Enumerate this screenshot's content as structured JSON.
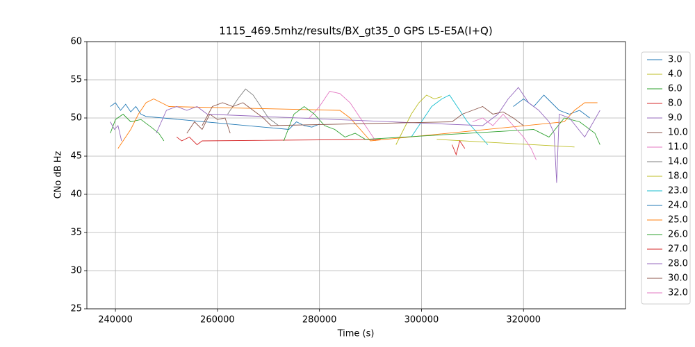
{
  "chart_data": {
    "type": "line",
    "title": "1115_469.5mhz/results/BX_gt35_0 GPS L5-E5A(I+Q)",
    "x_label": "Time (s)",
    "y_label": "CNo dB Hz",
    "xlim": [
      234400,
      340000
    ],
    "ylim": [
      25,
      60
    ],
    "xticks": [
      240000,
      260000,
      280000,
      300000,
      320000
    ],
    "yticks": [
      25,
      30,
      35,
      40,
      45,
      50,
      55,
      60
    ],
    "grid": true,
    "legend": "outside right",
    "series": [
      {
        "name": "3.0",
        "color": "#1f77b4",
        "x": [
          239000,
          240000,
          241000,
          242000,
          243000,
          244000,
          245000,
          246000,
          274000,
          275500,
          277000,
          278500,
          280000
        ],
        "values": [
          51.5,
          52,
          51,
          51.8,
          50.8,
          51.5,
          50.5,
          50.2,
          48.5,
          49.5,
          49,
          48.8,
          49.2
        ]
      },
      {
        "name": "4.0",
        "color": "#bcbd22",
        "x": [
          303000,
          330000
        ],
        "values": [
          47.2,
          46.2
        ]
      },
      {
        "name": "6.0",
        "color": "#2ca02c",
        "x": [
          239000,
          240000,
          241500,
          243000,
          245000,
          247000,
          248500,
          249500
        ],
        "values": [
          48,
          49.8,
          50.5,
          49.5,
          49.8,
          48.8,
          48,
          47
        ]
      },
      {
        "name": "8.0",
        "color": "#d62728",
        "x": [
          252000,
          253000,
          254500,
          256000,
          257000,
          292000
        ],
        "values": [
          47.5,
          47,
          47.5,
          46.5,
          47,
          47.2
        ]
      },
      {
        "name": "9.0",
        "color": "#9467bd",
        "x": [
          239000,
          239800,
          240500,
          241200
        ],
        "values": [
          49.5,
          48.5,
          49,
          47
        ]
      },
      {
        "name": "10.0",
        "color": "#8c564b",
        "x": [
          254000,
          255500,
          257000,
          258500,
          260000,
          261500,
          262500
        ],
        "values": [
          48,
          49.5,
          48.5,
          50.5,
          49.8,
          50,
          48
        ]
      },
      {
        "name": "11.0",
        "color": "#e377c2",
        "x": [
          278000,
          280000,
          282000,
          284000,
          286000,
          288000,
          290000,
          291000
        ],
        "values": [
          50,
          51.5,
          53.5,
          53.2,
          52,
          50,
          48,
          47
        ]
      },
      {
        "name": "14.0",
        "color": "#7f7f7f",
        "x": [
          262000,
          264000,
          265500,
          267000,
          268500,
          270000,
          272000
        ],
        "values": [
          50.5,
          52.5,
          53.8,
          53,
          51.5,
          50,
          49
        ]
      },
      {
        "name": "18.0",
        "color": "#bcbd22",
        "x": [
          295000,
          296500,
          298000,
          299500,
          301000,
          302500,
          304000
        ],
        "values": [
          46.5,
          48.5,
          50.5,
          52,
          53,
          52.5,
          52.8
        ]
      },
      {
        "name": "23.0",
        "color": "#17becf",
        "x": [
          298000,
          300000,
          302000,
          304000,
          305500,
          307000,
          309000,
          311000,
          313000
        ],
        "values": [
          47.5,
          49.5,
          51.5,
          52.5,
          53,
          51.5,
          49.5,
          48,
          46.5
        ]
      },
      {
        "name": "24.0",
        "color": "#1f77b4",
        "x": [
          318000,
          320000,
          322000,
          324000,
          325500,
          327000,
          329000,
          331000,
          333000
        ],
        "values": [
          51.5,
          52.5,
          51.5,
          53,
          52,
          51,
          50.5,
          51,
          50
        ]
      },
      {
        "name": "25.0",
        "color": "#ff7f0e",
        "x": [
          240500,
          241500,
          243000,
          244500,
          246000,
          247500,
          249000,
          250500,
          284000,
          286000,
          288000,
          290000,
          328000,
          330000,
          332000,
          334500
        ],
        "values": [
          46,
          47,
          48.5,
          50.5,
          52,
          52.5,
          52,
          51.5,
          51,
          50,
          48.5,
          47,
          49.5,
          51,
          52,
          52
        ]
      },
      {
        "name": "26.0",
        "color": "#2ca02c",
        "x": [
          273000,
          275000,
          277000,
          279000,
          281000,
          283000,
          285000,
          287000,
          289000,
          322000,
          325000,
          328000,
          331000,
          334000,
          335000
        ],
        "values": [
          47,
          50.5,
          51.5,
          50.5,
          49,
          48.5,
          47.5,
          48,
          47.2,
          48.5,
          47.5,
          50,
          49.5,
          48,
          46.5
        ]
      },
      {
        "name": "27.0",
        "color": "#d62728",
        "x": [
          306000,
          306800,
          307500,
          308500
        ],
        "values": [
          46.5,
          45.2,
          47,
          46
        ]
      },
      {
        "name": "28.0",
        "color": "#9467bd",
        "x": [
          248000,
          250000,
          252000,
          254000,
          256000,
          258000,
          312000,
          315000,
          317000,
          319000,
          321000,
          323000,
          325000,
          326000,
          326500,
          327000,
          329000,
          332000,
          335000
        ],
        "values": [
          48,
          51,
          51.5,
          51,
          51.5,
          50.5,
          49,
          50.5,
          52.5,
          54,
          52,
          51,
          49.5,
          48,
          41.5,
          50.5,
          50,
          47.5,
          51
        ]
      },
      {
        "name": "30.0",
        "color": "#8c564b",
        "x": [
          257000,
          259000,
          261000,
          263000,
          265000,
          267000,
          269000,
          270500,
          306000,
          308000,
          310000,
          312000,
          314000,
          316000,
          318000,
          320000
        ],
        "values": [
          49,
          51.5,
          52,
          51.5,
          52,
          51,
          50,
          49,
          49.5,
          50.5,
          51,
          51.5,
          50.5,
          50.8,
          50,
          49
        ]
      },
      {
        "name": "32.0",
        "color": "#e377c2",
        "x": [
          310000,
          312000,
          314000,
          316000,
          318000,
          320000,
          321500,
          322500
        ],
        "values": [
          49.5,
          50,
          49,
          50.5,
          49,
          47.5,
          46,
          44.5
        ]
      }
    ]
  }
}
